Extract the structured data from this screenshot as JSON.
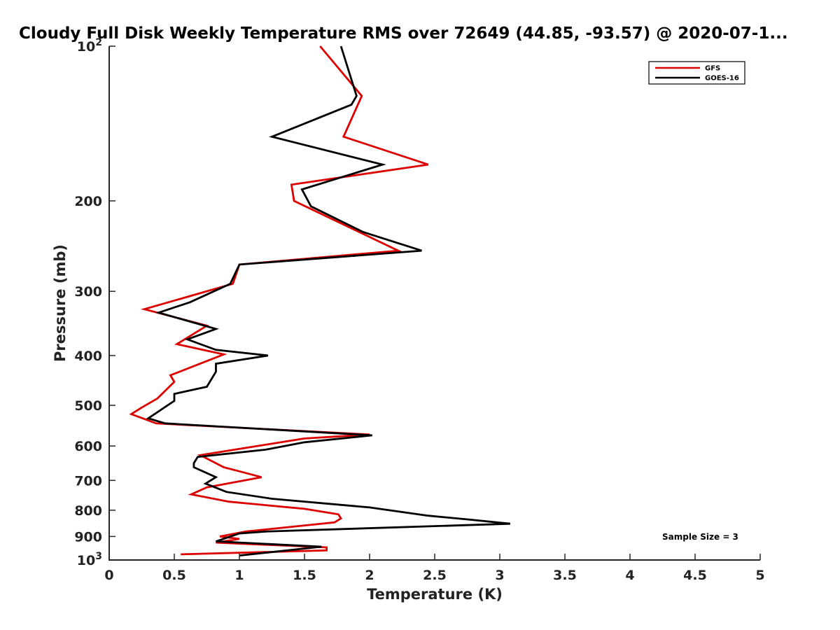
{
  "chart_data": {
    "type": "line",
    "title": "Cloudy Full Disk Weekly Temperature RMS over 72649 (44.85, -93.57) @ 2020-07-1...",
    "xlabel": "Temperature (K)",
    "ylabel": "Pressure (mb)",
    "xlim": [
      0,
      5
    ],
    "ylim": [
      100,
      1000
    ],
    "y_scale": "log",
    "y_reversed": true,
    "x_ticks": [
      0,
      0.5,
      1,
      1.5,
      2,
      2.5,
      3,
      3.5,
      4,
      4.5,
      5
    ],
    "x_tick_labels": [
      "0",
      "0.5",
      "1",
      "1.5",
      "2",
      "2.5",
      "3",
      "3.5",
      "4",
      "4.5",
      "5"
    ],
    "y_ticks": [
      100,
      200,
      300,
      400,
      500,
      600,
      700,
      800,
      900,
      1000
    ],
    "y_tick_labels": [
      {
        "base": "10",
        "exp": "2"
      },
      {
        "base": "200",
        "exp": ""
      },
      {
        "base": "300",
        "exp": ""
      },
      {
        "base": "400",
        "exp": ""
      },
      {
        "base": "500",
        "exp": ""
      },
      {
        "base": "600",
        "exp": ""
      },
      {
        "base": "700",
        "exp": ""
      },
      {
        "base": "800",
        "exp": ""
      },
      {
        "base": "900",
        "exp": ""
      },
      {
        "base": "10",
        "exp": "3"
      }
    ],
    "grid": false,
    "legend": {
      "position": "top-right"
    },
    "annotation": "Sample Size = 3",
    "series": [
      {
        "name": "GFS",
        "color": "#dd0000",
        "points": [
          [
            1.62,
            100
          ],
          [
            1.94,
            125
          ],
          [
            1.8,
            150
          ],
          [
            2.45,
            170
          ],
          [
            1.4,
            186
          ],
          [
            1.42,
            200
          ],
          [
            2.22,
            250
          ],
          [
            1.0,
            266
          ],
          [
            0.95,
            290
          ],
          [
            0.27,
            325
          ],
          [
            0.75,
            350
          ],
          [
            0.52,
            380
          ],
          [
            0.88,
            398
          ],
          [
            0.47,
            437
          ],
          [
            0.5,
            450
          ],
          [
            0.37,
            485
          ],
          [
            0.25,
            505
          ],
          [
            0.17,
            520
          ],
          [
            0.36,
            542
          ],
          [
            2.0,
            570
          ],
          [
            1.5,
            580
          ],
          [
            0.7,
            625
          ],
          [
            0.88,
            660
          ],
          [
            1.0,
            672
          ],
          [
            1.17,
            690
          ],
          [
            0.75,
            722
          ],
          [
            0.63,
            745
          ],
          [
            0.92,
            770
          ],
          [
            1.5,
            795
          ],
          [
            1.76,
            815
          ],
          [
            1.78,
            830
          ],
          [
            1.73,
            845
          ],
          [
            1.05,
            880
          ],
          [
            0.85,
            900
          ],
          [
            1.0,
            910
          ],
          [
            0.82,
            925
          ],
          [
            1.67,
            945
          ],
          [
            1.67,
            958
          ],
          [
            0.55,
            975
          ]
        ]
      },
      {
        "name": "GOES-16",
        "color": "#000000",
        "points": [
          [
            1.78,
            100
          ],
          [
            1.9,
            125
          ],
          [
            1.86,
            130
          ],
          [
            1.25,
            150
          ],
          [
            2.1,
            170
          ],
          [
            1.48,
            190
          ],
          [
            1.55,
            205
          ],
          [
            1.95,
            230
          ],
          [
            2.4,
            250
          ],
          [
            1.0,
            266
          ],
          [
            0.93,
            290
          ],
          [
            0.62,
            315
          ],
          [
            0.38,
            330
          ],
          [
            0.82,
            355
          ],
          [
            0.6,
            372
          ],
          [
            0.82,
            390
          ],
          [
            1.22,
            400
          ],
          [
            0.82,
            415
          ],
          [
            0.82,
            430
          ],
          [
            0.75,
            460
          ],
          [
            0.5,
            475
          ],
          [
            0.5,
            490
          ],
          [
            0.3,
            530
          ],
          [
            0.43,
            542
          ],
          [
            2.02,
            572
          ],
          [
            1.5,
            590
          ],
          [
            1.2,
            610
          ],
          [
            0.68,
            630
          ],
          [
            0.65,
            648
          ],
          [
            0.65,
            660
          ],
          [
            0.82,
            690
          ],
          [
            0.74,
            710
          ],
          [
            0.9,
            737
          ],
          [
            1.25,
            760
          ],
          [
            2.0,
            790
          ],
          [
            2.45,
            820
          ],
          [
            2.78,
            835
          ],
          [
            3.08,
            850
          ],
          [
            1.2,
            880
          ],
          [
            1.0,
            888
          ],
          [
            0.82,
            920
          ],
          [
            1.63,
            942
          ],
          [
            1.0,
            980
          ]
        ]
      }
    ]
  }
}
